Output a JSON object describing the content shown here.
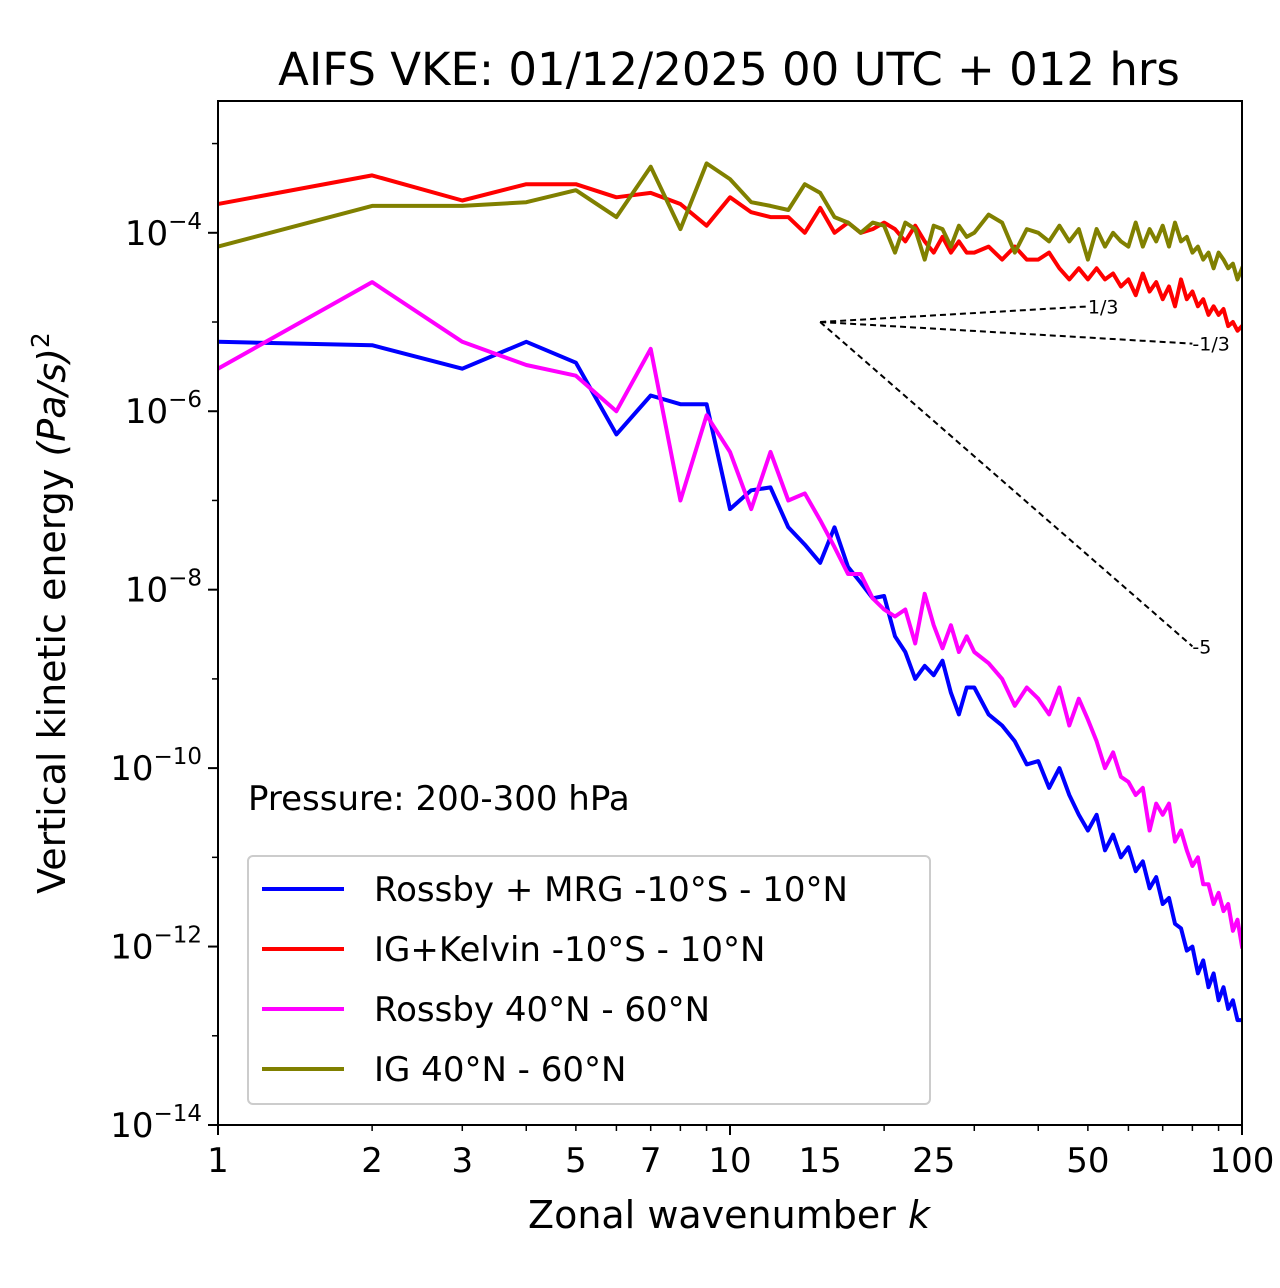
{
  "chart_data": {
    "type": "line",
    "title": "AIFS VKE: 01/12/2025 00 UTC + 012 hrs",
    "xlabel": "Zonal wavenumber",
    "xlabel_var": "k",
    "ylabel": "Vertical kinetic energy",
    "ylabel_unit": "(Pa/s)",
    "ylabel_unit_exp": "2",
    "xscale": "log",
    "yscale": "log",
    "xlim": [
      1,
      100
    ],
    "ylim": [
      1e-14,
      0.003
    ],
    "xticks": [
      {
        "value": 1,
        "label": "1"
      },
      {
        "value": 2,
        "label": "2"
      },
      {
        "value": 3,
        "label": "3"
      },
      {
        "value": 5,
        "label": "5"
      },
      {
        "value": 7,
        "label": "7"
      },
      {
        "value": 10,
        "label": "10"
      },
      {
        "value": 15,
        "label": "15"
      },
      {
        "value": 25,
        "label": "25"
      },
      {
        "value": 50,
        "label": "50"
      },
      {
        "value": 100,
        "label": "100"
      }
    ],
    "yticks": [
      {
        "exp": -4,
        "base": "10",
        "sup": "−4"
      },
      {
        "exp": -6,
        "base": "10",
        "sup": "−6"
      },
      {
        "exp": -8,
        "base": "10",
        "sup": "−8"
      },
      {
        "exp": -10,
        "base": "10",
        "sup": "−10"
      },
      {
        "exp": -12,
        "base": "10",
        "sup": "−12"
      },
      {
        "exp": -14,
        "base": "10",
        "sup": "−14"
      }
    ],
    "annotation": "Pressure: 200-300 hPa",
    "reference_lines": [
      {
        "slope": 0.3333,
        "label": "1/3",
        "x0": 15,
        "y0": 1e-05,
        "x1": 50
      },
      {
        "slope": -0.3333,
        "label": "-1/3",
        "x0": 15,
        "y0": 1e-05,
        "x1": 80
      },
      {
        "slope": -5,
        "label": "-5",
        "x0": 15,
        "y0": 1e-05,
        "x1": 80
      }
    ],
    "legend_position": "lower-left",
    "series": [
      {
        "name": "Rossby + MRG -10°S - 10°N",
        "color": "#0000ff",
        "x": [
          1,
          2,
          3,
          4,
          5,
          6,
          7,
          8,
          9,
          10,
          11,
          12,
          13,
          14,
          15,
          16,
          17,
          18,
          19,
          20,
          21,
          22,
          23,
          24,
          25,
          26,
          27,
          28,
          29,
          30,
          32,
          34,
          36,
          38,
          40,
          42,
          44,
          46,
          48,
          50,
          52,
          54,
          56,
          58,
          60,
          62,
          64,
          66,
          68,
          70,
          72,
          74,
          76,
          78,
          80,
          82,
          84,
          86,
          88,
          90,
          92,
          94,
          96,
          98,
          100
        ],
        "y": [
          6e-06,
          5.5e-06,
          3e-06,
          6e-06,
          3.5e-06,
          5.5e-07,
          1.5e-06,
          1.2e-06,
          1.2e-06,
          8e-08,
          1.3e-07,
          1.4e-07,
          5e-08,
          3.2e-08,
          2e-08,
          5e-08,
          1.8e-08,
          1.2e-08,
          8e-09,
          8.5e-09,
          3e-09,
          2e-09,
          1e-09,
          1.4e-09,
          1.1e-09,
          1.6e-09,
          7e-10,
          4e-10,
          8e-10,
          8e-10,
          4e-10,
          3e-10,
          2e-10,
          1.1e-10,
          1.2e-10,
          6e-11,
          1e-10,
          5e-11,
          3e-11,
          2e-11,
          3e-11,
          1.2e-11,
          1.8e-11,
          1e-11,
          1.3e-11,
          7e-12,
          9e-12,
          4.5e-12,
          6e-12,
          3e-12,
          3.5e-12,
          1.8e-12,
          1.6e-12,
          9e-13,
          1e-12,
          5e-13,
          7e-13,
          3.5e-13,
          5e-13,
          2.5e-13,
          3.5e-13,
          2e-13,
          2.5e-13,
          1.5e-13,
          1.5e-13
        ]
      },
      {
        "name": "IG+Kelvin -10°S - 10°N",
        "color": "#ff0000",
        "x": [
          1,
          2,
          3,
          4,
          5,
          6,
          7,
          8,
          9,
          10,
          11,
          12,
          13,
          14,
          15,
          16,
          17,
          18,
          19,
          20,
          21,
          22,
          23,
          24,
          25,
          26,
          27,
          28,
          29,
          30,
          32,
          34,
          36,
          38,
          40,
          42,
          44,
          46,
          48,
          50,
          52,
          54,
          56,
          58,
          60,
          62,
          64,
          66,
          68,
          70,
          72,
          74,
          76,
          78,
          80,
          82,
          84,
          86,
          88,
          90,
          92,
          94,
          96,
          98,
          100
        ],
        "y": [
          0.00021,
          0.00044,
          0.00023,
          0.00035,
          0.00035,
          0.00025,
          0.00028,
          0.00021,
          0.00012,
          0.00025,
          0.00017,
          0.00015,
          0.00015,
          0.0001,
          0.00019,
          0.0001,
          0.00013,
          0.0001,
          0.00011,
          0.00013,
          0.00011,
          8e-05,
          0.00012,
          8e-05,
          6e-05,
          9e-05,
          6e-05,
          8e-05,
          6e-05,
          6e-05,
          7e-05,
          5e-05,
          7e-05,
          5e-05,
          5e-05,
          6e-05,
          4e-05,
          3e-05,
          4e-05,
          3e-05,
          4e-05,
          3e-05,
          3.5e-05,
          2.5e-05,
          3e-05,
          2e-05,
          3.5e-05,
          2.2e-05,
          2.8e-05,
          1.8e-05,
          2.5e-05,
          1.5e-05,
          3e-05,
          1.8e-05,
          2.2e-05,
          1.5e-05,
          1.8e-05,
          1.2e-05,
          1.5e-05,
          1.2e-05,
          1.4e-05,
          9e-06,
          1e-05,
          8e-06,
          9e-06
        ]
      },
      {
        "name": "Rossby 40°N - 60°N",
        "color": "#ff00ff",
        "x": [
          1,
          2,
          3,
          4,
          5,
          6,
          7,
          8,
          9,
          10,
          11,
          12,
          13,
          14,
          15,
          16,
          17,
          18,
          19,
          20,
          21,
          22,
          23,
          24,
          25,
          26,
          27,
          28,
          29,
          30,
          32,
          34,
          36,
          38,
          40,
          42,
          44,
          46,
          48,
          50,
          52,
          54,
          56,
          58,
          60,
          62,
          64,
          66,
          68,
          70,
          72,
          74,
          76,
          78,
          80,
          82,
          84,
          86,
          88,
          90,
          92,
          94,
          96,
          98,
          100
        ],
        "y": [
          3e-06,
          2.8e-05,
          6e-06,
          3.3e-06,
          2.5e-06,
          1e-06,
          5e-06,
          1e-07,
          9e-07,
          3.5e-07,
          8e-08,
          3.5e-07,
          1e-07,
          1.2e-07,
          6e-08,
          3e-08,
          1.5e-08,
          1.5e-08,
          8e-09,
          6e-09,
          5e-09,
          6e-09,
          2.5e-09,
          9e-09,
          4e-09,
          2.2e-09,
          4e-09,
          2e-09,
          3e-09,
          2e-09,
          1.5e-09,
          1e-09,
          5e-10,
          8e-10,
          6e-10,
          4e-10,
          8e-10,
          3e-10,
          6e-10,
          3.5e-10,
          2e-10,
          1e-10,
          1.5e-10,
          8e-11,
          7e-11,
          5e-11,
          6e-11,
          2e-11,
          4e-11,
          3e-11,
          4e-11,
          1.5e-11,
          2e-11,
          1.2e-11,
          8e-12,
          1e-11,
          5e-12,
          5e-12,
          3e-12,
          4e-12,
          2.5e-12,
          3e-12,
          1.5e-12,
          2e-12,
          1e-12
        ]
      },
      {
        "name": "IG 40°N - 60°N",
        "color": "#808000",
        "x": [
          1,
          2,
          3,
          4,
          5,
          6,
          7,
          8,
          9,
          10,
          11,
          12,
          13,
          14,
          15,
          16,
          17,
          18,
          19,
          20,
          21,
          22,
          23,
          24,
          25,
          26,
          27,
          28,
          29,
          30,
          32,
          34,
          36,
          38,
          40,
          42,
          44,
          46,
          48,
          50,
          52,
          54,
          56,
          58,
          60,
          62,
          64,
          66,
          68,
          70,
          72,
          74,
          76,
          78,
          80,
          82,
          84,
          86,
          88,
          90,
          92,
          94,
          96,
          98,
          100
        ],
        "y": [
          7e-05,
          0.0002,
          0.0002,
          0.00022,
          0.0003,
          0.00015,
          0.00055,
          0.00011,
          0.0006,
          0.0004,
          0.00022,
          0.0002,
          0.00018,
          0.00035,
          0.00028,
          0.00015,
          0.00013,
          0.0001,
          0.00013,
          0.00012,
          6e-05,
          0.00013,
          0.00011,
          5e-05,
          0.00012,
          0.00011,
          7e-05,
          0.00012,
          9e-05,
          0.0001,
          0.00016,
          0.00013,
          6e-05,
          0.00011,
          0.0001,
          8e-05,
          0.00012,
          8e-05,
          0.00011,
          5e-05,
          0.00011,
          7e-05,
          0.0001,
          8e-05,
          7e-05,
          0.00013,
          7e-05,
          0.00011,
          8e-05,
          0.00012,
          7e-05,
          0.00013,
          8e-05,
          9e-05,
          6e-05,
          7e-05,
          5e-05,
          6e-05,
          4e-05,
          6e-05,
          5e-05,
          4e-05,
          4.5e-05,
          3e-05,
          4e-05
        ]
      }
    ]
  }
}
